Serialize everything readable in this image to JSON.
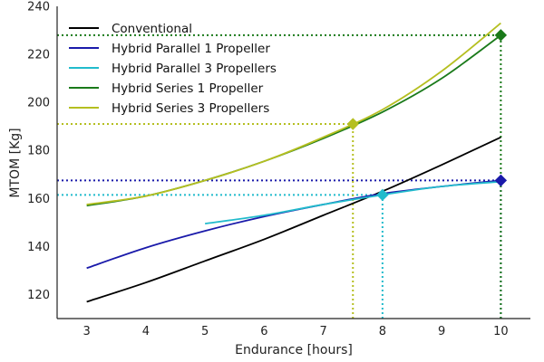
{
  "chart_data": {
    "type": "line",
    "title": "",
    "xlabel": "Endurance [hours]",
    "ylabel": "MTOM [Kg]",
    "xlim": [
      2.5,
      10.5
    ],
    "ylim": [
      110,
      240
    ],
    "xticks": [
      3,
      4,
      5,
      6,
      7,
      8,
      9,
      10
    ],
    "yticks": [
      120,
      140,
      160,
      180,
      200,
      220,
      240
    ],
    "grid": false,
    "legend_position": "top-left",
    "series": [
      {
        "name": "Conventional",
        "color": "#000000",
        "x": [
          3,
          4,
          5,
          6,
          7,
          8,
          9,
          10
        ],
        "y": [
          117,
          125,
          134,
          143,
          153,
          163,
          174,
          185.5
        ]
      },
      {
        "name": "Hybrid Parallel 1 Propeller",
        "color": "#1a1aaa",
        "x": [
          3,
          4,
          5,
          6,
          7,
          8,
          9,
          10
        ],
        "y": [
          131,
          139.5,
          146.5,
          152.5,
          157.5,
          162,
          165,
          167.5
        ]
      },
      {
        "name": "Hybrid Parallel 3 Propellers",
        "color": "#22bbcc",
        "x": [
          5,
          6,
          7,
          8,
          9,
          10
        ],
        "y": [
          149.5,
          153,
          157.5,
          161.5,
          165,
          167
        ]
      },
      {
        "name": "Hybrid Series 1 Propeller",
        "color": "#1a7a1a",
        "x": [
          3,
          4,
          5,
          6,
          7,
          8,
          9,
          10
        ],
        "y": [
          157,
          161,
          167.5,
          175.5,
          185,
          196,
          210,
          228
        ]
      },
      {
        "name": "Hybrid Series 3 Propellers",
        "color": "#b5bf20",
        "x": [
          3,
          4,
          5,
          6,
          7,
          8,
          9,
          10
        ],
        "y": [
          157.5,
          161,
          167.5,
          175.5,
          185.5,
          197,
          213,
          233
        ]
      }
    ],
    "markers": [
      {
        "x": 7.5,
        "y": 191,
        "color": "#b5bf20"
      },
      {
        "x": 8,
        "y": 161.5,
        "color": "#22bbcc"
      },
      {
        "x": 10,
        "y": 167.5,
        "color": "#1a1aaa"
      },
      {
        "x": 10,
        "y": 228,
        "color": "#1a7a1a"
      }
    ],
    "reference_lines": [
      {
        "orientation": "horizontal",
        "value": 228,
        "x_to": 10,
        "color": "#1a7a1a"
      },
      {
        "orientation": "horizontal",
        "value": 191,
        "x_to": 7.5,
        "color": "#b5bf20"
      },
      {
        "orientation": "horizontal",
        "value": 167.5,
        "x_to": 10,
        "color": "#1a1aaa"
      },
      {
        "orientation": "horizontal",
        "value": 161.5,
        "x_to": 8,
        "color": "#22bbcc"
      },
      {
        "orientation": "vertical",
        "value": 7.5,
        "y_from": 191,
        "color": "#b5bf20"
      },
      {
        "orientation": "vertical",
        "value": 8,
        "y_from": 161.5,
        "color": "#22bbcc"
      },
      {
        "orientation": "vertical",
        "value": 10,
        "y_from": 167.5,
        "color": "#1a1aaa"
      },
      {
        "orientation": "vertical",
        "value": 10,
        "y_from": 228,
        "color": "#1a7a1a"
      }
    ]
  }
}
